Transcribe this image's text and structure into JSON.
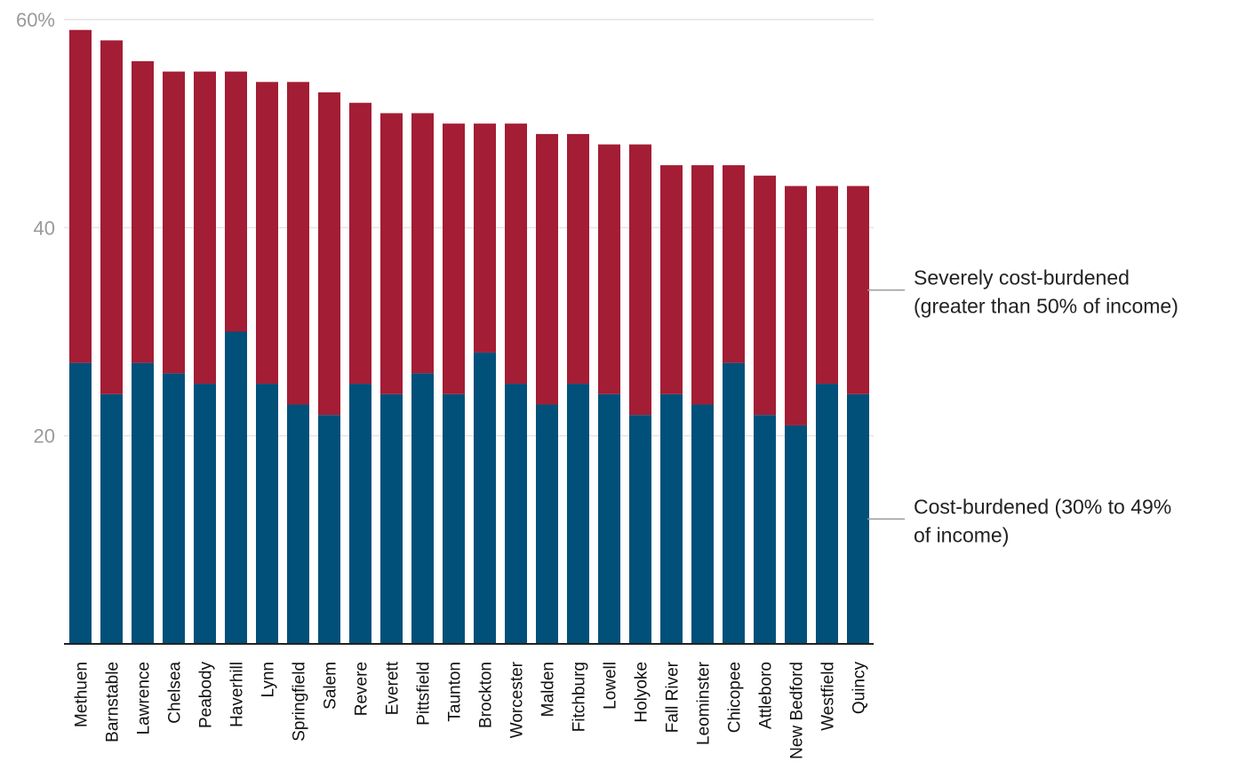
{
  "chart_data": {
    "type": "bar",
    "stacked": true,
    "categories": [
      "Methuen",
      "Barnstable",
      "Lawrence",
      "Chelsea",
      "Peabody",
      "Haverhill",
      "Lynn",
      "Springfield",
      "Salem",
      "Revere",
      "Everett",
      "Pittsfield",
      "Taunton",
      "Brockton",
      "Worcester",
      "Malden",
      "Fitchburg",
      "Lowell",
      "Holyoke",
      "Fall River",
      "Leominster",
      "Chicopee",
      "Attleboro",
      "New Bedford",
      "Westfield",
      "Quincy"
    ],
    "series": [
      {
        "name": "Cost-burdened (30% to 49% of income)",
        "color": "#00507a",
        "values": [
          27,
          24,
          27,
          26,
          25,
          30,
          25,
          23,
          22,
          25,
          24,
          26,
          24,
          28,
          25,
          23,
          25,
          24,
          22,
          24,
          23,
          27,
          22,
          21,
          25,
          24
        ]
      },
      {
        "name": "Severely cost-burdened (greater than 50% of income)",
        "color": "#a31d35",
        "values": [
          32,
          34,
          29,
          29,
          30,
          25,
          29,
          31,
          31,
          27,
          27,
          25,
          26,
          22,
          25,
          26,
          24,
          24,
          26,
          22,
          23,
          19,
          23,
          23,
          19,
          20
        ]
      }
    ],
    "ylim": [
      0,
      60
    ],
    "yticks": [
      {
        "value": 60,
        "label": "60%"
      },
      {
        "value": 40,
        "label": "40"
      },
      {
        "value": 20,
        "label": "20"
      }
    ],
    "grid": true,
    "legend": [
      {
        "lines": [
          "Severely cost-burdened",
          "(greater than 50% of income)"
        ],
        "anchor_value": 34
      },
      {
        "lines": [
          "Cost-burdened (30% to 49%",
          "of income)"
        ],
        "anchor_value": 12
      }
    ],
    "legend_placement": "right",
    "xlabel": "",
    "ylabel": ""
  }
}
